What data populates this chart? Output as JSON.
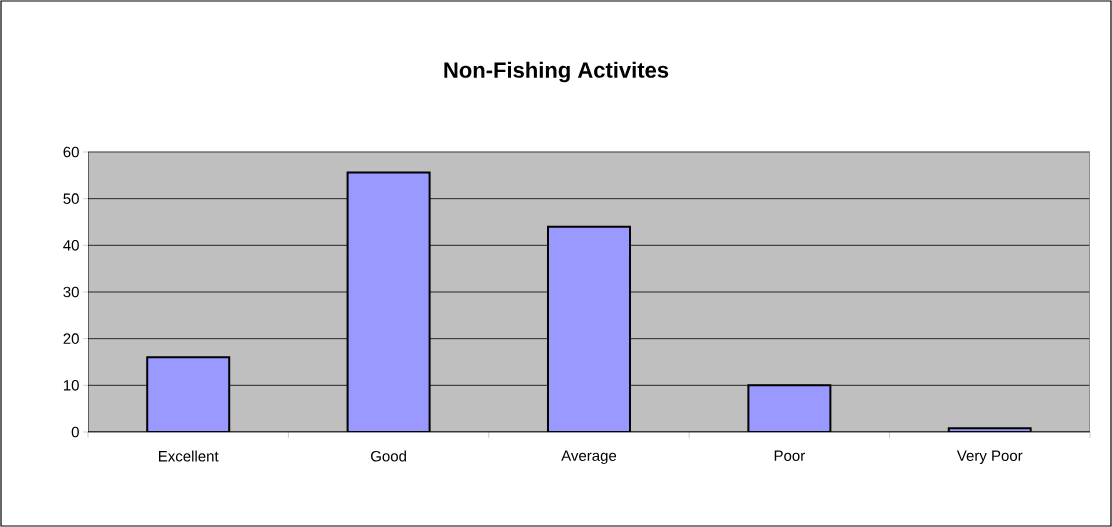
{
  "chart_data": {
    "type": "bar",
    "title": "Non-Fishing Activites",
    "categories": [
      "Excellent",
      "Good",
      "Average",
      "Poor",
      "Very Poor"
    ],
    "values": [
      16,
      55.6,
      44,
      10,
      0.8
    ],
    "color": "#9999ff",
    "ylim": [
      0,
      60
    ],
    "yticks": [
      0,
      10,
      20,
      30,
      40,
      50,
      60
    ],
    "grid": "y"
  }
}
